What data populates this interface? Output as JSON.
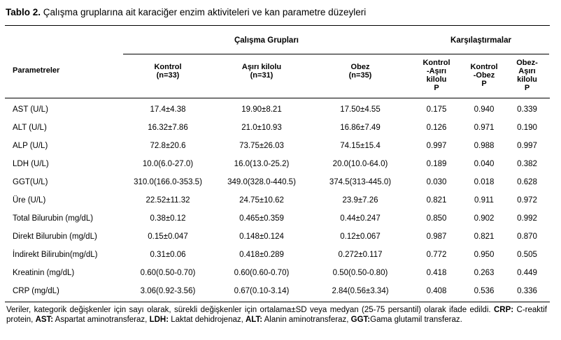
{
  "title": {
    "label": "Tablo 2.",
    "text": " Çalışma gruplarına ait karaciğer enzim aktiviteleri ve kan parametre düzeyleri"
  },
  "header": {
    "study_groups": "Çalışma Grupları",
    "comparisons": "Karşılaştırmalar",
    "parameters": "Parametreler",
    "kontrol": {
      "name": "Kontrol",
      "n": "(n=33)"
    },
    "asiri": {
      "name": "Aşırı kilolu",
      "n": "(n=31)"
    },
    "obez": {
      "name": "Obez",
      "n": "(n=35)"
    },
    "cmp1": [
      "Kontrol",
      "-Aşırı",
      "kilolu",
      "P"
    ],
    "cmp2": [
      "Kontrol",
      "-Obez",
      "P"
    ],
    "cmp3": [
      "Obez-",
      "Aşırı",
      "kilolu",
      "P"
    ]
  },
  "rows": [
    {
      "param": "AST (U/L)",
      "kontrol": "17.4±4.38",
      "asiri": "19.90±8.21",
      "obez": "17.50±4.55",
      "p1": "0.175",
      "p2": "0.940",
      "p3": "0.339"
    },
    {
      "param": "ALT (U/L)",
      "kontrol": "16.32±7.86",
      "asiri": "21.0±10.93",
      "obez": "16.86±7.49",
      "p1": "0.126",
      "p2": "0.971",
      "p3": "0.190"
    },
    {
      "param": "ALP (U/L)",
      "kontrol": "72.8±20.6",
      "asiri": "73.75±26.03",
      "obez": "74.15±15.4",
      "p1": "0.997",
      "p2": "0.988",
      "p3": "0.997"
    },
    {
      "param": "LDH (U/L)",
      "kontrol": "10.0(6.0-27.0)",
      "asiri": "16.0(13.0-25.2)",
      "obez": "20.0(10.0-64.0)",
      "p1": "0.189",
      "p2": "0.040",
      "p3": "0.382"
    },
    {
      "param": "GGT(U/L)",
      "kontrol": "310.0(166.0-353.5)",
      "asiri": "349.0(328.0-440.5)",
      "obez": "374.5(313-445.0)",
      "p1": "0.030",
      "p2": "0.018",
      "p3": "0.628"
    },
    {
      "param": "Üre (U/L)",
      "kontrol": "22.52±11.32",
      "asiri": "24.75±10.62",
      "obez": "23.9±7.26",
      "p1": "0.821",
      "p2": "0.911",
      "p3": "0.972"
    },
    {
      "param": "Total Bilurubin (mg/dL)",
      "kontrol": "0.38±0.12",
      "asiri": "0.465±0.359",
      "obez": "0.44±0.247",
      "p1": "0.850",
      "p2": "0.902",
      "p3": "0.992"
    },
    {
      "param": "Direkt Bilurubin (mg/dL)",
      "kontrol": "0.15±0.047",
      "asiri": "0.148±0.124",
      "obez": "0.12±0.067",
      "p1": "0.987",
      "p2": "0.821",
      "p3": "0.870"
    },
    {
      "param": "İndirekt Bilirubin(mg/dL)",
      "kontrol": "0.31±0.06",
      "asiri": "0.418±0.289",
      "obez": "0.272±0.117",
      "p1": "0.772",
      "p2": "0.950",
      "p3": "0.505"
    },
    {
      "param": "Kreatinin (mg/dL)",
      "kontrol": "0.60(0.50-0.70)",
      "asiri": "0.60(0.60-0.70)",
      "obez": "0.50(0.50-0.80)",
      "p1": "0.418",
      "p2": "0.263",
      "p3": "0.449"
    },
    {
      "param": "CRP (mg/dL)",
      "kontrol": "3.06(0.92-3.56)",
      "asiri": "0.67(0.10-3.14)",
      "obez": "2.84(0.56±3.34)",
      "p1": "0.408",
      "p2": "0.536",
      "p3": "0.336"
    }
  ],
  "footnote": {
    "intro": "Veriler, kategorik değişkenler için sayı olarak, sürekli değişkenler için ortalama±SD veya medyan (25-75 persantil) olarak ifade edildi. ",
    "crp_abbr": "CRP:",
    "crp_def": " C-reaktif protein, ",
    "ast_abbr": "AST:",
    "ast_def": " Aspartat aminotransferaz, ",
    "ldh_abbr": "LDH:",
    "ldh_def": " Laktat dehidrojenaz, ",
    "alt_abbr": "ALT:",
    "alt_def": " Alanin aminotransferaz, ",
    "ggt_abbr": "GGT:",
    "ggt_def": "Gama glutamil transferaz."
  }
}
